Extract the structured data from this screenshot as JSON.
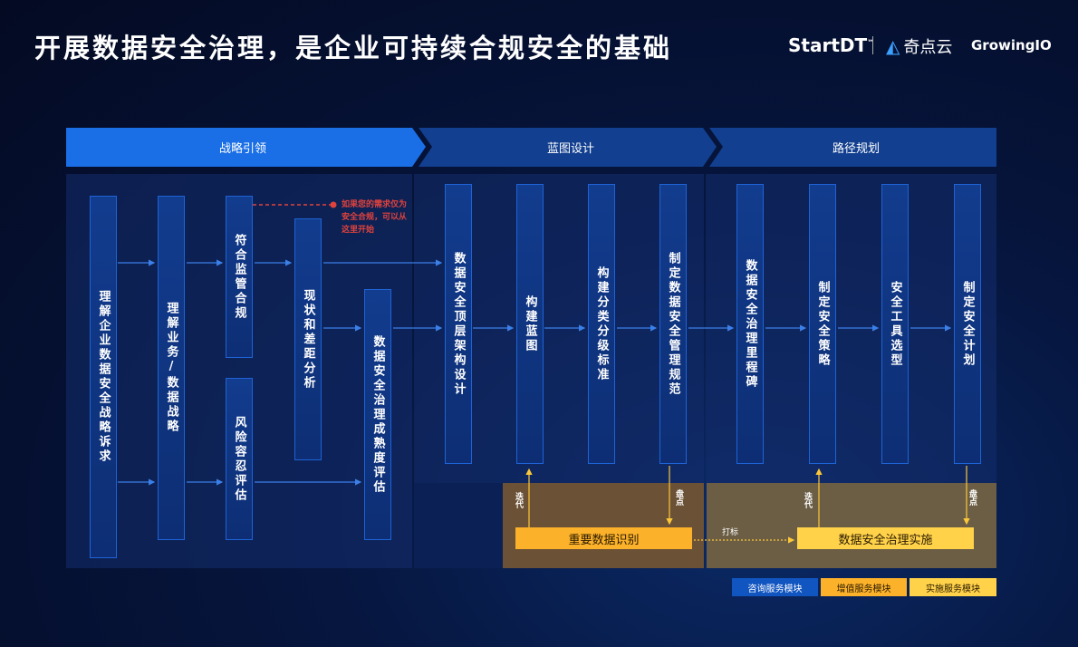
{
  "title": "开展数据安全治理，是企业可持续合规安全的基础",
  "logos": {
    "startdt": "StartDT",
    "tm": "™",
    "qidianyun": "奇点云",
    "growingio": "GrowingIO"
  },
  "phases": [
    "战略引领",
    "蓝图设计",
    "路径规划"
  ],
  "steps": {
    "a": "理解企业数据安全战略诉求",
    "b": "理解业务/数据战略",
    "c": "符合监管合规",
    "d": "风险容忍评估",
    "e": "现状和差距分析",
    "f": "数据安全治理成熟度评估",
    "g": "数据安全顶层架构设计",
    "h": "构建蓝图",
    "i": "构建分类分级标准",
    "j": "制定数据安全管理规范",
    "k": "数据安全治理里程碑",
    "l": "制定安全策略",
    "m": "安全工具选型",
    "n": "制定安全计划"
  },
  "note": "如果您的需求仅为安全合规，可以从这里开始",
  "bottom": {
    "important_data": "重要数据识别",
    "implementation": "数据安全治理实施",
    "iterate": "迭代",
    "inventory": "盘点",
    "tagging": "打标"
  },
  "legend": [
    {
      "label": "咨询服务模块",
      "color": "#1155c0"
    },
    {
      "label": "增值服务模块",
      "color": "#fbb12a"
    },
    {
      "label": "实施服务模块",
      "color": "#ffd24a"
    }
  ],
  "colors": {
    "note": "#e0423c",
    "box_border": "#1e63d6"
  }
}
